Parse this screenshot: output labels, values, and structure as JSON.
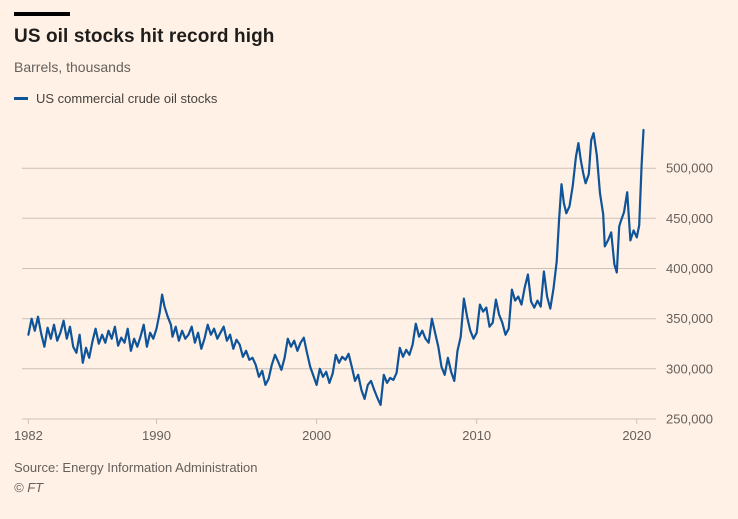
{
  "header": {
    "title": "US oil stocks hit record high",
    "subtitle": "Barrels, thousands"
  },
  "legend": {
    "label": "US commercial crude oil stocks",
    "color": "#0f5499"
  },
  "footer": {
    "source": "Source: Energy Information Administration",
    "ft": "© FT"
  },
  "colors": {
    "background": "#fff1e5",
    "accent_bar": "#000000",
    "line": "#0f5499",
    "grid": "#ccc1b7",
    "muted_text": "#66605c",
    "title_text": "#1f1d1b"
  },
  "chart_data": {
    "type": "line",
    "title": "US oil stocks hit record high",
    "ylabel": "Barrels, thousands",
    "xlabel": "",
    "grid": "horizontal",
    "legend_position": "top-left",
    "xlim": [
      1981.6,
      2021.2
    ],
    "ylim": [
      245000,
      552000
    ],
    "x_ticks": [
      1982,
      1990,
      2000,
      2010,
      2020
    ],
    "x_tick_labels": [
      "1982",
      "1990",
      "2000",
      "2010",
      "2020"
    ],
    "y_ticks": [
      250000,
      300000,
      350000,
      400000,
      450000,
      500000
    ],
    "y_tick_labels": [
      "250,000",
      "300,000",
      "350,000",
      "400,000",
      "450,000",
      "500,000"
    ],
    "series": [
      {
        "name": "US commercial crude oil stocks",
        "color": "#0f5499",
        "points": [
          [
            1982.0,
            334000
          ],
          [
            1982.2,
            350000
          ],
          [
            1982.4,
            338000
          ],
          [
            1982.6,
            352000
          ],
          [
            1982.8,
            335000
          ],
          [
            1983.0,
            322000
          ],
          [
            1983.2,
            341000
          ],
          [
            1983.4,
            330000
          ],
          [
            1983.6,
            344000
          ],
          [
            1983.8,
            328000
          ],
          [
            1984.0,
            336000
          ],
          [
            1984.2,
            348000
          ],
          [
            1984.4,
            330000
          ],
          [
            1984.6,
            342000
          ],
          [
            1984.8,
            322000
          ],
          [
            1985.0,
            316000
          ],
          [
            1985.2,
            334000
          ],
          [
            1985.4,
            306000
          ],
          [
            1985.6,
            321000
          ],
          [
            1985.8,
            311000
          ],
          [
            1986.0,
            327000
          ],
          [
            1986.2,
            340000
          ],
          [
            1986.4,
            325000
          ],
          [
            1986.6,
            334000
          ],
          [
            1986.8,
            326000
          ],
          [
            1987.0,
            338000
          ],
          [
            1987.2,
            330000
          ],
          [
            1987.4,
            342000
          ],
          [
            1987.6,
            323000
          ],
          [
            1987.8,
            331000
          ],
          [
            1988.0,
            326000
          ],
          [
            1988.2,
            340000
          ],
          [
            1988.4,
            318000
          ],
          [
            1988.6,
            330000
          ],
          [
            1988.8,
            322000
          ],
          [
            1989.0,
            332000
          ],
          [
            1989.2,
            344000
          ],
          [
            1989.4,
            322000
          ],
          [
            1989.6,
            336000
          ],
          [
            1989.8,
            330000
          ],
          [
            1990.0,
            340000
          ],
          [
            1990.2,
            356000
          ],
          [
            1990.35,
            374000
          ],
          [
            1990.5,
            362000
          ],
          [
            1990.7,
            352000
          ],
          [
            1990.9,
            344000
          ],
          [
            1991.0,
            332000
          ],
          [
            1991.2,
            342000
          ],
          [
            1991.4,
            328000
          ],
          [
            1991.6,
            338000
          ],
          [
            1991.8,
            330000
          ],
          [
            1992.0,
            334000
          ],
          [
            1992.2,
            342000
          ],
          [
            1992.4,
            326000
          ],
          [
            1992.6,
            336000
          ],
          [
            1992.8,
            320000
          ],
          [
            1993.0,
            330000
          ],
          [
            1993.2,
            344000
          ],
          [
            1993.4,
            334000
          ],
          [
            1993.6,
            340000
          ],
          [
            1993.8,
            330000
          ],
          [
            1994.0,
            336000
          ],
          [
            1994.2,
            342000
          ],
          [
            1994.4,
            328000
          ],
          [
            1994.6,
            334000
          ],
          [
            1994.8,
            320000
          ],
          [
            1995.0,
            329000
          ],
          [
            1995.2,
            324000
          ],
          [
            1995.4,
            312000
          ],
          [
            1995.6,
            318000
          ],
          [
            1995.8,
            309000
          ],
          [
            1996.0,
            311000
          ],
          [
            1996.2,
            304000
          ],
          [
            1996.4,
            292000
          ],
          [
            1996.6,
            298000
          ],
          [
            1996.8,
            284000
          ],
          [
            1997.0,
            290000
          ],
          [
            1997.2,
            304000
          ],
          [
            1997.4,
            314000
          ],
          [
            1997.6,
            307000
          ],
          [
            1997.8,
            299000
          ],
          [
            1998.0,
            311000
          ],
          [
            1998.2,
            330000
          ],
          [
            1998.4,
            322000
          ],
          [
            1998.6,
            328000
          ],
          [
            1998.8,
            318000
          ],
          [
            1999.0,
            326000
          ],
          [
            1999.2,
            331000
          ],
          [
            1999.4,
            316000
          ],
          [
            1999.6,
            302000
          ],
          [
            1999.8,
            293000
          ],
          [
            2000.0,
            284000
          ],
          [
            2000.2,
            300000
          ],
          [
            2000.4,
            292000
          ],
          [
            2000.6,
            297000
          ],
          [
            2000.8,
            286000
          ],
          [
            2001.0,
            295000
          ],
          [
            2001.2,
            314000
          ],
          [
            2001.4,
            306000
          ],
          [
            2001.6,
            312000
          ],
          [
            2001.8,
            309000
          ],
          [
            2002.0,
            315000
          ],
          [
            2002.2,
            302000
          ],
          [
            2002.4,
            288000
          ],
          [
            2002.6,
            294000
          ],
          [
            2002.8,
            279000
          ],
          [
            2003.0,
            270000
          ],
          [
            2003.2,
            284000
          ],
          [
            2003.4,
            288000
          ],
          [
            2003.6,
            279000
          ],
          [
            2003.8,
            271000
          ],
          [
            2004.0,
            264000
          ],
          [
            2004.2,
            294000
          ],
          [
            2004.4,
            286000
          ],
          [
            2004.6,
            291000
          ],
          [
            2004.8,
            289000
          ],
          [
            2005.0,
            296000
          ],
          [
            2005.2,
            321000
          ],
          [
            2005.4,
            312000
          ],
          [
            2005.6,
            319000
          ],
          [
            2005.8,
            314000
          ],
          [
            2006.0,
            324000
          ],
          [
            2006.2,
            345000
          ],
          [
            2006.4,
            332000
          ],
          [
            2006.6,
            338000
          ],
          [
            2006.8,
            330000
          ],
          [
            2007.0,
            326000
          ],
          [
            2007.2,
            350000
          ],
          [
            2007.4,
            336000
          ],
          [
            2007.6,
            322000
          ],
          [
            2007.8,
            302000
          ],
          [
            2008.0,
            294000
          ],
          [
            2008.2,
            311000
          ],
          [
            2008.4,
            297000
          ],
          [
            2008.6,
            288000
          ],
          [
            2008.8,
            318000
          ],
          [
            2009.0,
            332000
          ],
          [
            2009.2,
            370000
          ],
          [
            2009.4,
            352000
          ],
          [
            2009.6,
            338000
          ],
          [
            2009.8,
            330000
          ],
          [
            2010.0,
            336000
          ],
          [
            2010.2,
            364000
          ],
          [
            2010.4,
            357000
          ],
          [
            2010.6,
            361000
          ],
          [
            2010.8,
            342000
          ],
          [
            2011.0,
            346000
          ],
          [
            2011.2,
            369000
          ],
          [
            2011.4,
            354000
          ],
          [
            2011.6,
            346000
          ],
          [
            2011.8,
            334000
          ],
          [
            2012.0,
            340000
          ],
          [
            2012.2,
            379000
          ],
          [
            2012.4,
            368000
          ],
          [
            2012.6,
            372000
          ],
          [
            2012.8,
            364000
          ],
          [
            2013.0,
            381000
          ],
          [
            2013.2,
            394000
          ],
          [
            2013.4,
            367000
          ],
          [
            2013.6,
            361000
          ],
          [
            2013.8,
            368000
          ],
          [
            2014.0,
            362000
          ],
          [
            2014.2,
            397000
          ],
          [
            2014.4,
            372000
          ],
          [
            2014.6,
            360000
          ],
          [
            2014.8,
            380000
          ],
          [
            2015.0,
            407000
          ],
          [
            2015.15,
            449000
          ],
          [
            2015.3,
            484000
          ],
          [
            2015.45,
            465000
          ],
          [
            2015.6,
            455000
          ],
          [
            2015.8,
            462000
          ],
          [
            2016.0,
            482000
          ],
          [
            2016.2,
            511000
          ],
          [
            2016.35,
            525000
          ],
          [
            2016.5,
            508000
          ],
          [
            2016.65,
            495000
          ],
          [
            2016.8,
            485000
          ],
          [
            2017.0,
            494000
          ],
          [
            2017.15,
            528000
          ],
          [
            2017.3,
            535000
          ],
          [
            2017.5,
            513000
          ],
          [
            2017.7,
            475000
          ],
          [
            2017.9,
            454000
          ],
          [
            2018.0,
            422000
          ],
          [
            2018.2,
            428000
          ],
          [
            2018.4,
            436000
          ],
          [
            2018.6,
            404000
          ],
          [
            2018.75,
            396000
          ],
          [
            2018.9,
            442000
          ],
          [
            2019.0,
            447000
          ],
          [
            2019.2,
            456000
          ],
          [
            2019.4,
            476000
          ],
          [
            2019.6,
            428000
          ],
          [
            2019.8,
            438000
          ],
          [
            2020.0,
            431000
          ],
          [
            2020.15,
            443000
          ],
          [
            2020.3,
            503000
          ],
          [
            2020.42,
            538000
          ]
        ]
      }
    ]
  }
}
